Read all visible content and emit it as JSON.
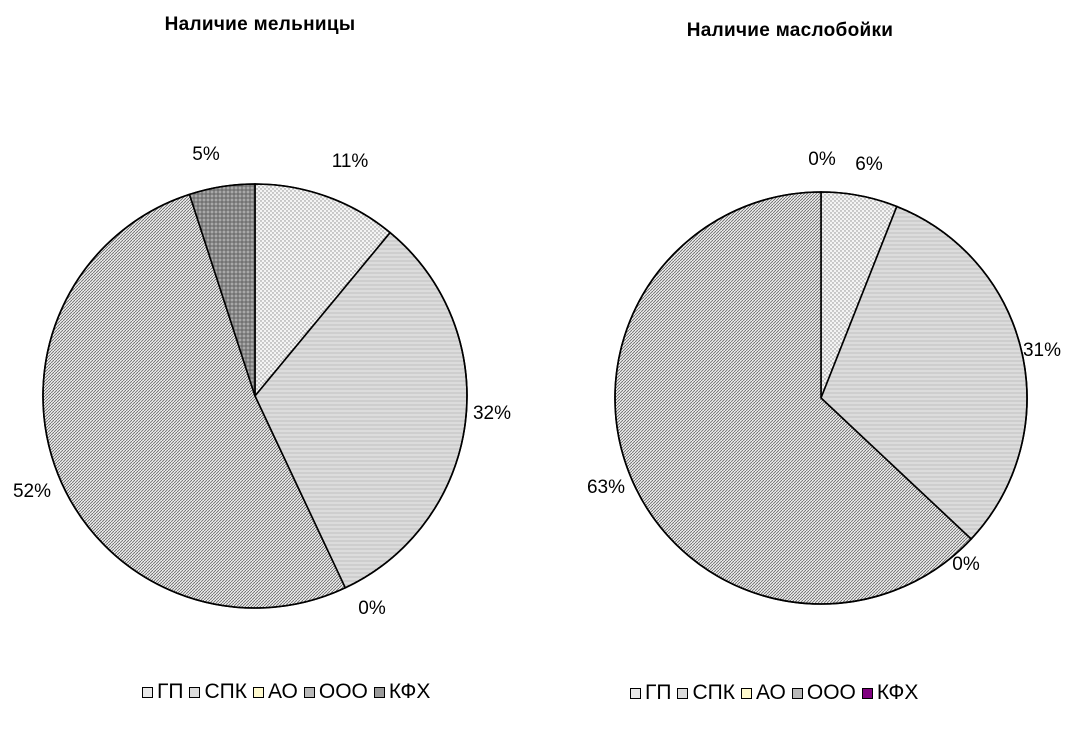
{
  "chart_data": [
    {
      "type": "pie",
      "title": "Наличие мельницы",
      "categories": [
        "ГП",
        "СПК",
        "АО",
        "ООО",
        "КФХ"
      ],
      "values": [
        11,
        32,
        0,
        52,
        5
      ],
      "labels": [
        "11%",
        "32%",
        "0%",
        "52%",
        "5%"
      ],
      "legend_position": "bottom"
    },
    {
      "type": "pie",
      "title": "Наличие маслобойки",
      "categories": [
        "ГП",
        "СПК",
        "АО",
        "ООО",
        "КФХ"
      ],
      "values": [
        6,
        31,
        0,
        63,
        0
      ],
      "labels": [
        "6%",
        "31%",
        "0%",
        "63%",
        "0%"
      ],
      "legend_position": "bottom"
    }
  ],
  "colors": {
    "ГП": "#e9e9e9",
    "СПК": "#dcdcdc",
    "АО": "#fffacd",
    "ООО": "#b9b9b9",
    "КФХ_left": "#9a9a9a",
    "КФХ_right": "#800080"
  },
  "icons": [
    "legend-swatch"
  ]
}
